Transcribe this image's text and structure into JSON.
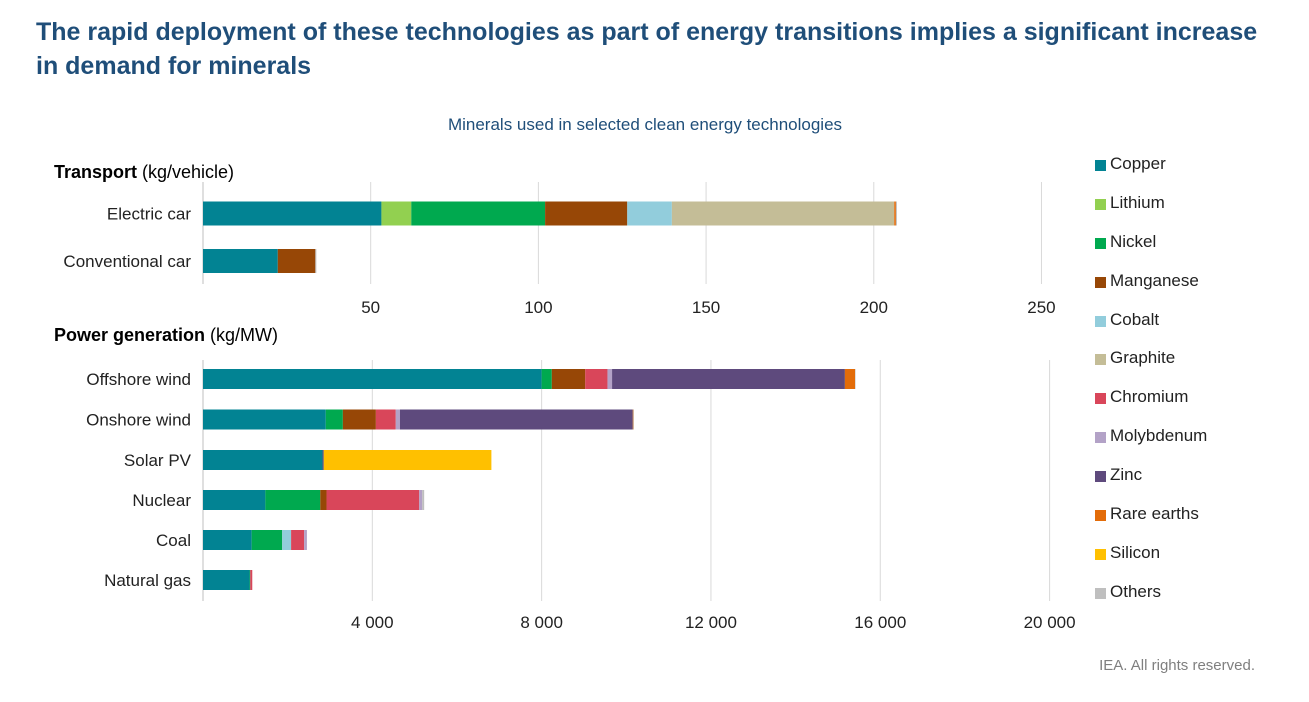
{
  "headline": "The rapid deployment of these technologies as part of energy transitions implies a significant increase in demand for minerals",
  "footer": "IEA. All rights reserved.",
  "colors": {
    "Copper": "#028393",
    "Lithium": "#92d050",
    "Nickel": "#00a94f",
    "Manganese": "#974706",
    "Cobalt": "#92cddc",
    "Graphite": "#c4bd97",
    "Chromium": "#d9465a",
    "Molybdenum": "#b3a2c7",
    "Zinc": "#5e4a7d",
    "Rare earths": "#e36c09",
    "Silicon": "#ffc000",
    "Others": "#bfbfbf"
  },
  "chart_data": {
    "type": "bar",
    "orientation": "horizontal",
    "stacked": true,
    "title": "Minerals used in selected clean energy technologies",
    "legend_position": "right",
    "legend": [
      "Copper",
      "Lithium",
      "Nickel",
      "Manganese",
      "Cobalt",
      "Graphite",
      "Chromium",
      "Molybdenum",
      "Zinc",
      "Rare earths",
      "Silicon",
      "Others"
    ],
    "panels": [
      {
        "name": "transport",
        "label_bold": "Transport",
        "label_unit": " (kg/vehicle)",
        "xlim": [
          0,
          260
        ],
        "ticks": [
          50,
          100,
          150,
          200,
          250
        ],
        "tick_labels": [
          "50",
          "100",
          "150",
          "200",
          "250"
        ],
        "categories": [
          "Electric car",
          "Conventional car"
        ],
        "series": [
          {
            "name": "Copper",
            "values": [
              53.2,
              22.3
            ]
          },
          {
            "name": "Lithium",
            "values": [
              8.9,
              0
            ]
          },
          {
            "name": "Nickel",
            "values": [
              39.9,
              0
            ]
          },
          {
            "name": "Manganese",
            "values": [
              24.5,
              11.2
            ]
          },
          {
            "name": "Cobalt",
            "values": [
              13.3,
              0
            ]
          },
          {
            "name": "Graphite",
            "values": [
              66.3,
              0
            ]
          },
          {
            "name": "Chromium",
            "values": [
              0,
              0
            ]
          },
          {
            "name": "Molybdenum",
            "values": [
              0,
              0
            ]
          },
          {
            "name": "Zinc",
            "values": [
              0,
              0
            ]
          },
          {
            "name": "Rare earths",
            "values": [
              0.5,
              0
            ]
          },
          {
            "name": "Silicon",
            "values": [
              0,
              0
            ]
          },
          {
            "name": "Others",
            "values": [
              0.3,
              0.3
            ]
          }
        ]
      },
      {
        "name": "power",
        "label_bold": "Power generation",
        "label_unit": " (kg/MW)",
        "xlim": [
          0,
          20600
        ],
        "ticks": [
          4000,
          8000,
          12000,
          16000,
          20000
        ],
        "tick_labels": [
          "4 000",
          "8 000",
          "12 000",
          "16 000",
          "20 000"
        ],
        "categories": [
          "Offshore wind",
          "Onshore wind",
          "Solar PV",
          "Nuclear",
          "Coal",
          "Natural gas"
        ],
        "series": [
          {
            "name": "Copper",
            "values": [
              8000,
              2900,
              2822,
              1473,
              1150,
              1100
            ]
          },
          {
            "name": "Lithium",
            "values": [
              0,
              0,
              0,
              0,
              0,
              0
            ]
          },
          {
            "name": "Nickel",
            "values": [
              240,
              404,
              1,
              1297,
              721,
              16
            ]
          },
          {
            "name": "Manganese",
            "values": [
              790,
              780,
              0,
              148,
              0,
              0
            ]
          },
          {
            "name": "Cobalt",
            "values": [
              0,
              0,
              0,
              0,
              210,
              0
            ]
          },
          {
            "name": "Graphite",
            "values": [
              0,
              0,
              0,
              0,
              0,
              0
            ]
          },
          {
            "name": "Chromium",
            "values": [
              525,
              470,
              0,
              2190,
              308,
              48
            ]
          },
          {
            "name": "Molybdenum",
            "values": [
              109,
              99,
              0,
              70,
              66,
              0
            ]
          },
          {
            "name": "Zinc",
            "values": [
              5500,
              5500,
              30,
              0,
              0,
              0
            ]
          },
          {
            "name": "Rare earths",
            "values": [
              239,
              14,
              0,
              0,
              0,
              0
            ]
          },
          {
            "name": "Silicon",
            "values": [
              0,
              0,
              3960,
              0,
              0,
              0
            ]
          },
          {
            "name": "Others",
            "values": [
              5,
              5,
              0,
              47,
              0,
              0
            ]
          }
        ]
      }
    ]
  }
}
